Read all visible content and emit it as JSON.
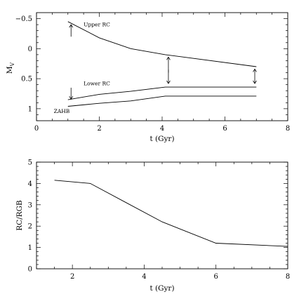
{
  "chart_data": [
    {
      "type": "line",
      "xlabel": "t (Gyr)",
      "ylabel": "M_V",
      "ylabel_main": "M",
      "ylabel_sub": "V",
      "xlim": [
        0,
        8
      ],
      "ylim": [
        1.2,
        -0.6
      ],
      "y_inverted": true,
      "xticks_major": [
        0,
        2,
        4,
        6,
        8
      ],
      "xtick_labels": [
        "0",
        "2",
        "4",
        "6",
        "8"
      ],
      "yticks_major": [
        -0.5,
        0,
        0.5,
        1
      ],
      "ytick_labels": [
        "−0.5",
        "0",
        "0.5",
        "1"
      ],
      "series": [
        {
          "name": "Upper RC",
          "x": [
            1.0,
            2.0,
            3.0,
            4.1,
            7.0
          ],
          "y": [
            -0.45,
            -0.18,
            0.0,
            0.1,
            0.3
          ]
        },
        {
          "name": "Lower RC",
          "x": [
            1.0,
            2.0,
            3.0,
            4.1,
            7.0
          ],
          "y": [
            0.85,
            0.76,
            0.71,
            0.64,
            0.64
          ]
        },
        {
          "name": "ZAHB",
          "x": [
            1.0,
            2.0,
            3.0,
            4.1,
            7.0
          ],
          "y": [
            0.96,
            0.91,
            0.87,
            0.79,
            0.79
          ]
        }
      ],
      "annotations": [
        {
          "text": "Upper RC",
          "x": 1.5,
          "y": -0.37
        },
        {
          "text": "Lower RC",
          "x": 1.5,
          "y": 0.61
        },
        {
          "text": "ZAHB",
          "x": 0.55,
          "y": 1.07
        }
      ],
      "arrows": [
        {
          "x": 1.1,
          "y_from": -0.2,
          "y_to": -0.4,
          "heads": "end"
        },
        {
          "x": 1.1,
          "y_from": 0.65,
          "y_to": 0.84,
          "heads": "end"
        },
        {
          "x": 4.2,
          "y_from": 0.4,
          "y_to": 0.14,
          "heads": "end"
        },
        {
          "x": 4.2,
          "y_from": 0.35,
          "y_to": 0.58,
          "heads": "end"
        },
        {
          "x": 6.95,
          "y_from": 0.34,
          "y_to": 0.58,
          "heads": "both"
        }
      ]
    },
    {
      "type": "line",
      "xlabel": "t (Gyr)",
      "ylabel": "RC/RGB",
      "xlim": [
        1,
        8
      ],
      "ylim": [
        0,
        5
      ],
      "xticks_major": [
        2,
        4,
        6,
        8
      ],
      "xtick_labels": [
        "2",
        "4",
        "6",
        "8"
      ],
      "yticks_major": [
        0,
        1,
        2,
        3,
        4,
        5
      ],
      "ytick_labels": [
        "0",
        "1",
        "2",
        "3",
        "4",
        "5"
      ],
      "series": [
        {
          "x": [
            1.5,
            2.5,
            3.5,
            4.5,
            6.0,
            8.0
          ],
          "y": [
            4.15,
            4.0,
            3.1,
            2.2,
            1.2,
            1.05
          ]
        }
      ]
    }
  ]
}
